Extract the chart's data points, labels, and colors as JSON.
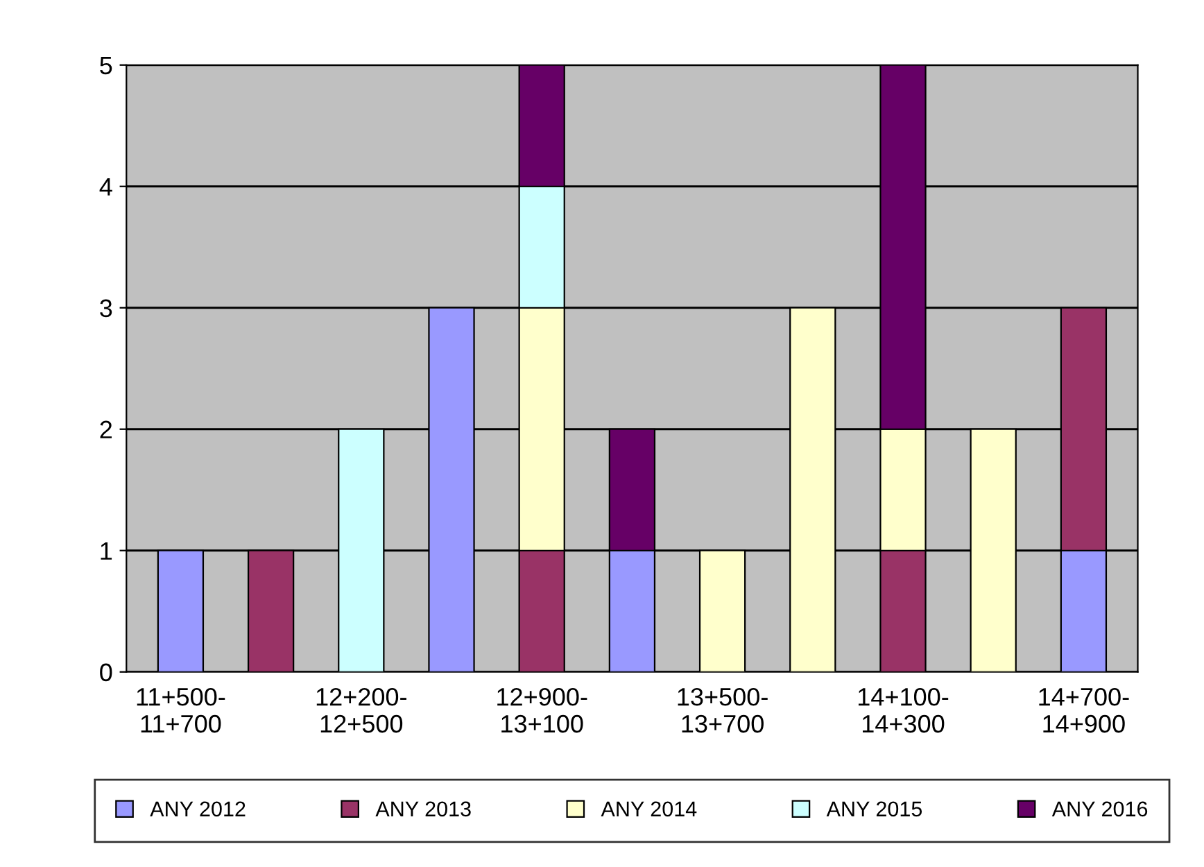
{
  "chart_data": {
    "type": "bar",
    "stacked": true,
    "categories": [
      "11+500-\n11+700",
      null,
      "12+200-\n12+500",
      null,
      "12+900-\n13+100",
      null,
      "13+500-\n13+700",
      null,
      "14+100-\n14+300",
      null,
      "14+700-\n14+900"
    ],
    "series": [
      {
        "name": "ANY 2012",
        "color": "#9999ff",
        "values": [
          1,
          0,
          0,
          3,
          0,
          1,
          0,
          0,
          0,
          0,
          1
        ]
      },
      {
        "name": "ANY 2013",
        "color": "#993366",
        "values": [
          0,
          1,
          0,
          0,
          1,
          0,
          0,
          0,
          1,
          0,
          2
        ]
      },
      {
        "name": "ANY 2014",
        "color": "#ffffcc",
        "values": [
          0,
          0,
          0,
          0,
          2,
          0,
          1,
          3,
          1,
          2,
          0
        ]
      },
      {
        "name": "ANY 2015",
        "color": "#ccffff",
        "values": [
          0,
          0,
          2,
          0,
          1,
          0,
          0,
          0,
          0,
          0,
          0
        ]
      },
      {
        "name": "ANY 2016",
        "color": "#660066",
        "values": [
          0,
          0,
          0,
          0,
          1,
          1,
          0,
          0,
          3,
          0,
          0
        ]
      }
    ],
    "ylim": [
      0,
      5
    ],
    "yticks": [
      0,
      1,
      2,
      3,
      4,
      5
    ],
    "grid": "y",
    "legend": "bottom"
  }
}
